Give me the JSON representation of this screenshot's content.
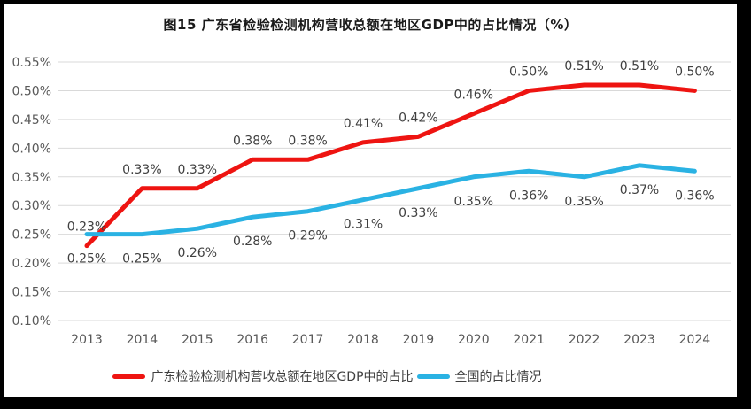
{
  "title": "图15  广东省检验检测机构营收总额在地区GDP中的占比情况（%）",
  "frame": {
    "border_color": "#000000",
    "background_color": "#ffffff"
  },
  "chart_data": {
    "type": "line",
    "title": "图15  广东省检验检测机构营收总额在地区GDP中的占比情况（%）",
    "categories": [
      "2013",
      "2014",
      "2015",
      "2016",
      "2017",
      "2018",
      "2019",
      "2020",
      "2021",
      "2022",
      "2023",
      "2024"
    ],
    "series": [
      {
        "name": "广东检验检测机构营收总额在地区GDP中的占比",
        "color": "#ee1411",
        "values": [
          0.23,
          0.33,
          0.33,
          0.38,
          0.38,
          0.41,
          0.42,
          0.46,
          0.5,
          0.51,
          0.51,
          0.5
        ],
        "labels": [
          "0.23%",
          "0.33%",
          "0.33%",
          "0.38%",
          "0.38%",
          "0.41%",
          "0.42%",
          "0.46%",
          "0.50%",
          "0.51%",
          "0.51%",
          "0.50%"
        ],
        "label_position": "above"
      },
      {
        "name": "全国的占比情况",
        "color": "#2ab2e3",
        "values": [
          0.25,
          0.25,
          0.26,
          0.28,
          0.29,
          0.31,
          0.33,
          0.35,
          0.36,
          0.35,
          0.37,
          0.36
        ],
        "labels": [
          "0.25%",
          "0.25%",
          "0.26%",
          "0.28%",
          "0.29%",
          "0.31%",
          "0.33%",
          "0.35%",
          "0.36%",
          "0.35%",
          "0.37%",
          "0.36%"
        ],
        "label_position": "below"
      }
    ],
    "xlabel": "",
    "ylabel": "",
    "ylim": [
      0.1,
      0.55
    ],
    "ytick_values": [
      0.1,
      0.15,
      0.2,
      0.25,
      0.3,
      0.35,
      0.4,
      0.45,
      0.5,
      0.55
    ],
    "ytick_labels": [
      "0.10%",
      "0.15%",
      "0.20%",
      "0.25%",
      "0.30%",
      "0.35%",
      "0.40%",
      "0.45%",
      "0.50%",
      "0.55%"
    ],
    "grid": true,
    "gridline_color": "#d9d9d9",
    "axis_label_color": "#595959",
    "data_label_color": "#3f3f3f",
    "legend_position": "bottom"
  }
}
